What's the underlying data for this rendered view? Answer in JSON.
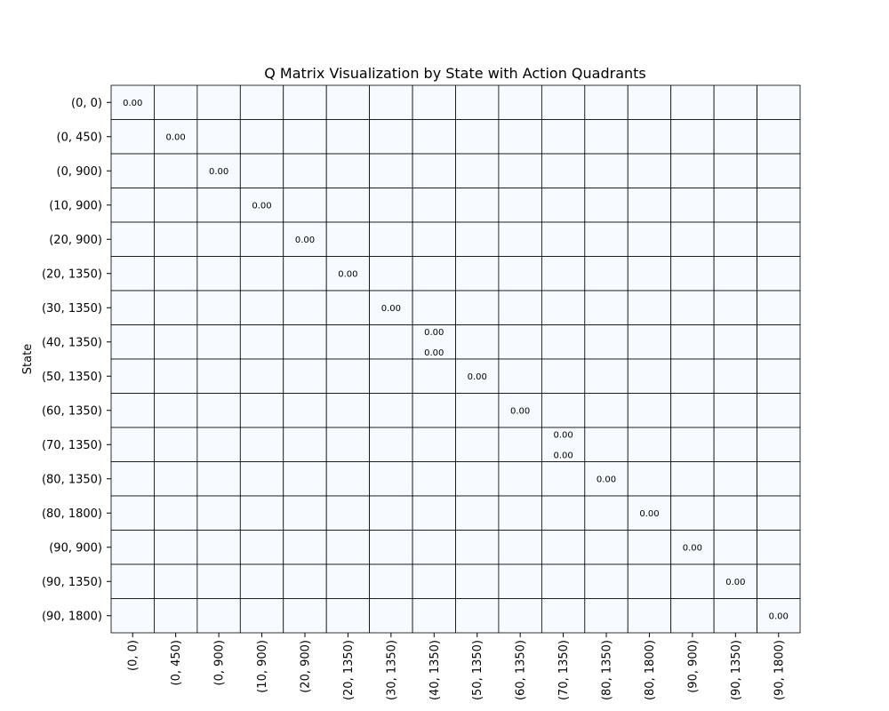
{
  "chart_data": {
    "type": "heatmap",
    "title": "Q Matrix Visualization by State with Action Quadrants",
    "xlabel": "",
    "ylabel": "State",
    "states": [
      "(0, 0)",
      "(0, 450)",
      "(0, 900)",
      "(10, 900)",
      "(20, 900)",
      "(20, 1350)",
      "(30, 1350)",
      "(40, 1350)",
      "(50, 1350)",
      "(60, 1350)",
      "(70, 1350)",
      "(80, 1350)",
      "(80, 1800)",
      "(90, 900)",
      "(90, 1350)",
      "(90, 1800)"
    ],
    "cell_color": "#f7fbff",
    "grid_color": "#000000",
    "annotations": [
      {
        "row": 0,
        "col": 0,
        "text": "0.00"
      },
      {
        "row": 1,
        "col": 1,
        "text": "0.00"
      },
      {
        "row": 2,
        "col": 2,
        "text": "0.00"
      },
      {
        "row": 3,
        "col": 3,
        "text": "0.00"
      },
      {
        "row": 4,
        "col": 4,
        "text": "0.00"
      },
      {
        "row": 5,
        "col": 5,
        "text": "0.00"
      },
      {
        "row": 6,
        "col": 6,
        "text": "0.00"
      },
      {
        "row": 7,
        "col": 7,
        "text": "0.00"
      },
      {
        "row": 7,
        "col": 7,
        "text": "0.00"
      },
      {
        "row": 8,
        "col": 8,
        "text": "0.00"
      },
      {
        "row": 9,
        "col": 9,
        "text": "0.00"
      },
      {
        "row": 10,
        "col": 10,
        "text": "0.00"
      },
      {
        "row": 10,
        "col": 10,
        "text": "0.00"
      },
      {
        "row": 11,
        "col": 11,
        "text": "0.00"
      },
      {
        "row": 12,
        "col": 12,
        "text": "0.00"
      },
      {
        "row": 13,
        "col": 13,
        "text": "0.00"
      },
      {
        "row": 14,
        "col": 14,
        "text": "0.00"
      },
      {
        "row": 15,
        "col": 15,
        "text": "0.00"
      }
    ]
  }
}
